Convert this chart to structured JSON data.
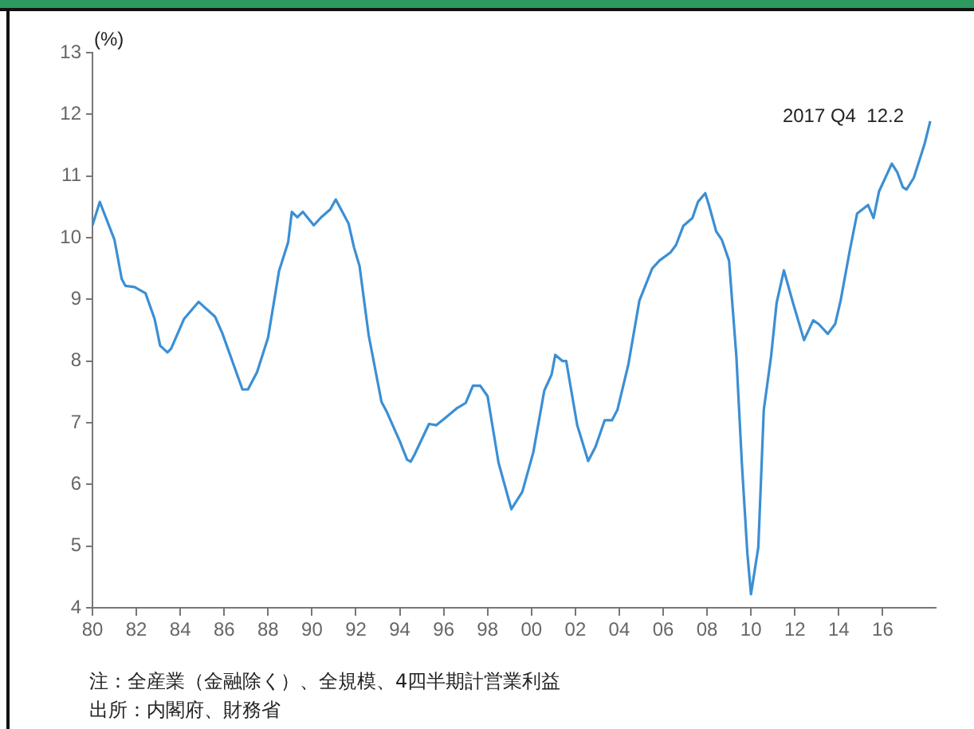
{
  "chart_data": {
    "type": "line",
    "ylabel": "(%)",
    "x": [
      "1980-01",
      "1980-05",
      "1981-01",
      "1981-05",
      "1981-07",
      "1981-12",
      "1982-06",
      "1982-11",
      "1983-02",
      "1983-06",
      "1983-08",
      "1984-03",
      "1984-11",
      "1985-08",
      "1985-12",
      "1986-11",
      "1987-02",
      "1987-07",
      "1988-01",
      "1988-07",
      "1988-12",
      "1989-02",
      "1989-05",
      "1989-08",
      "1990-02",
      "1990-06",
      "1990-11",
      "1991-02",
      "1991-09",
      "1991-12",
      "1992-03",
      "1992-08",
      "1993-03",
      "1993-06",
      "1994-01",
      "1994-05",
      "1994-07",
      "1994-09",
      "1995-05",
      "1995-09",
      "1996-02",
      "1996-08",
      "1997-01",
      "1997-05",
      "1997-09",
      "1998-01",
      "1998-07",
      "1999-02",
      "1999-08",
      "2000-02",
      "2000-08",
      "2000-12",
      "2001-02",
      "2001-06",
      "2001-08",
      "2002-02",
      "2002-08",
      "2002-12",
      "2003-05",
      "2003-09",
      "2003-12",
      "2004-06",
      "2004-12",
      "2005-07",
      "2005-11",
      "2006-05",
      "2006-08",
      "2006-12",
      "2007-05",
      "2007-08",
      "2007-12",
      "2008-02",
      "2008-06",
      "2008-09",
      "2009-01",
      "2009-05",
      "2009-08",
      "2009-11",
      "2010-01",
      "2010-05",
      "2010-08",
      "2010-12",
      "2011-03",
      "2011-07",
      "2011-12",
      "2012-06",
      "2012-11",
      "2013-02",
      "2013-07",
      "2013-11",
      "2014-02",
      "2014-07",
      "2014-11",
      "2015-05",
      "2015-08",
      "2015-11",
      "2016-06",
      "2016-09",
      "2016-12",
      "2017-02",
      "2017-06",
      "2017-12",
      "2018-03"
    ],
    "series": [
      {
        "color": "#3b8fd4",
        "values": [
          10.2,
          10.58,
          9.97,
          9.33,
          9.22,
          9.2,
          9.1,
          8.68,
          8.25,
          8.14,
          8.2,
          8.68,
          8.96,
          8.72,
          8.45,
          7.54,
          7.54,
          7.82,
          8.38,
          9.46,
          9.93,
          10.42,
          10.33,
          10.42,
          10.2,
          10.33,
          10.46,
          10.62,
          10.23,
          9.84,
          9.54,
          8.42,
          7.34,
          7.17,
          6.7,
          6.4,
          6.37,
          6.48,
          6.98,
          6.96,
          7.08,
          7.23,
          7.32,
          7.6,
          7.6,
          7.43,
          6.35,
          5.6,
          5.88,
          6.52,
          7.52,
          7.78,
          8.1,
          8.0,
          8.0,
          6.96,
          6.38,
          6.61,
          7.04,
          7.04,
          7.21,
          7.95,
          8.98,
          9.5,
          9.63,
          9.76,
          9.88,
          10.19,
          10.32,
          10.58,
          10.72,
          10.53,
          10.1,
          9.97,
          9.63,
          8.08,
          6.35,
          4.89,
          4.22,
          4.98,
          7.21,
          8.08,
          8.94,
          9.47,
          8.94,
          8.34,
          8.66,
          8.6,
          8.44,
          8.6,
          8.98,
          9.79,
          10.39,
          10.53,
          10.32,
          10.75,
          11.2,
          11.06,
          10.82,
          10.78,
          10.97,
          11.53,
          11.89
        ]
      }
    ],
    "xlim": [
      "1980-01",
      "2018-06"
    ],
    "xticks": [
      {
        "value": "1980-01",
        "label": "80"
      },
      {
        "value": "1982-01",
        "label": "82"
      },
      {
        "value": "1984-01",
        "label": "84"
      },
      {
        "value": "1986-01",
        "label": "86"
      },
      {
        "value": "1988-01",
        "label": "88"
      },
      {
        "value": "1990-01",
        "label": "90"
      },
      {
        "value": "1992-01",
        "label": "92"
      },
      {
        "value": "1994-01",
        "label": "94"
      },
      {
        "value": "1996-01",
        "label": "96"
      },
      {
        "value": "1998-01",
        "label": "98"
      },
      {
        "value": "2000-01",
        "label": "00"
      },
      {
        "value": "2002-01",
        "label": "02"
      },
      {
        "value": "2004-01",
        "label": "04"
      },
      {
        "value": "2006-01",
        "label": "06"
      },
      {
        "value": "2008-01",
        "label": "08"
      },
      {
        "value": "2010-01",
        "label": "10"
      },
      {
        "value": "2012-01",
        "label": "12"
      },
      {
        "value": "2014-01",
        "label": "14"
      },
      {
        "value": "2016-01",
        "label": "16"
      }
    ],
    "ylim": [
      4,
      13
    ],
    "yticks": [
      4,
      5,
      6,
      7,
      8,
      9,
      10,
      11,
      12,
      13
    ],
    "grid": false,
    "legend": false,
    "marker": "none",
    "line_style": "solid",
    "annotations": [
      "2017 Q4  12.2",
      "注：全産業（金融除く）、全規模、4四半期計営業利益",
      "出所：内閣府、財務省"
    ]
  }
}
